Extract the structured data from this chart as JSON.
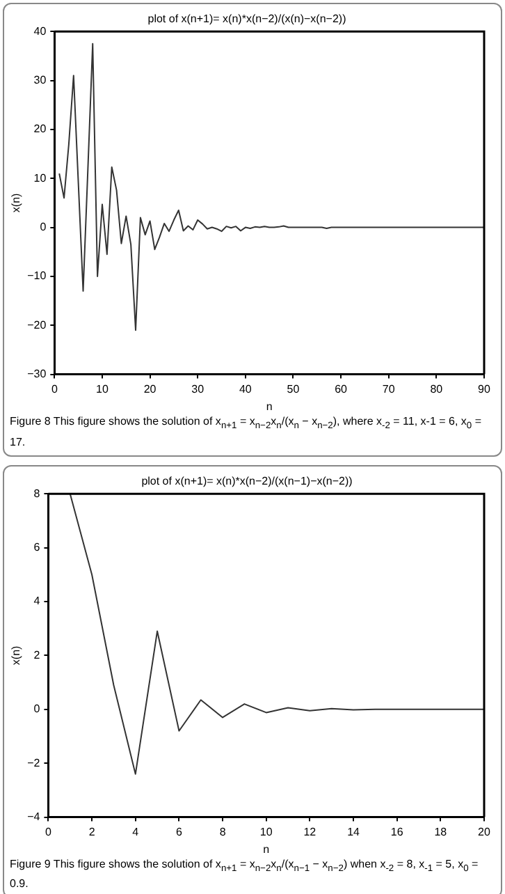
{
  "chart_data": [
    {
      "type": "line",
      "title": "plot of x(n+1)= x(n)*x(n−2)/(x(n)−x(n−2))",
      "xlabel": "n",
      "ylabel": "x(n)",
      "x": [
        1,
        2,
        3,
        4,
        5,
        6,
        7,
        8,
        9,
        10,
        11,
        12,
        13,
        14,
        15,
        16,
        17,
        18,
        19,
        20,
        21,
        22,
        23,
        24,
        25,
        26,
        27,
        28,
        29,
        30,
        31,
        32,
        33,
        34,
        35,
        36,
        37,
        38,
        39,
        40,
        41,
        42,
        43,
        44,
        45,
        46,
        47,
        48,
        49,
        50,
        51,
        52,
        53,
        54,
        55,
        56,
        57,
        58,
        59,
        60,
        61,
        62,
        63,
        64,
        65,
        66,
        67,
        68,
        69,
        70,
        71,
        72,
        73,
        74,
        75,
        76,
        77,
        78,
        79,
        80,
        81,
        82,
        83,
        84,
        85,
        86,
        87,
        88,
        89,
        90
      ],
      "values": [
        11,
        6,
        17,
        31,
        9,
        -13,
        12,
        37.5,
        -10,
        4.7,
        -5.5,
        12.3,
        7.6,
        -3.3,
        2.3,
        -3.5,
        -21,
        2,
        -1.5,
        1.3,
        -4.5,
        -2,
        0.8,
        -0.8,
        1.5,
        3.5,
        -0.7,
        0.3,
        -0.5,
        1.5,
        0.7,
        -0.3,
        0,
        -0.3,
        -0.8,
        0.2,
        -0.1,
        0.2,
        -0.7,
        0,
        -0.2,
        0.1,
        0,
        0.2,
        0,
        0,
        0.1,
        0.3,
        0,
        0,
        0,
        0,
        0,
        0,
        0,
        0,
        -0.2,
        0,
        0,
        0,
        0,
        0,
        0,
        0,
        0,
        0,
        0,
        0,
        0,
        0,
        0,
        0,
        0,
        0,
        0,
        0,
        0,
        0,
        0,
        0,
        0,
        0,
        0,
        0,
        0,
        0,
        0,
        0,
        0,
        0
      ],
      "color": "#333333",
      "xlim": [
        0,
        90
      ],
      "ylim": [
        -30,
        40
      ],
      "xticks": [
        0,
        10,
        20,
        30,
        40,
        50,
        60,
        70,
        80,
        90
      ],
      "yticks": [
        -30,
        -20,
        -10,
        0,
        10,
        20,
        30,
        40
      ],
      "grid": false,
      "legend": false,
      "annotations": [
        "Figure 8 This figure shows the solution of x$_{n+1}$ = x$_{n−2}$x$_{n}$/(x$_{n}$ − x$_{n−2}$), where x$_{-2}$ = 11, x-1 = 6, x$_{0}$ = 17."
      ]
    },
    {
      "type": "line",
      "title": "plot of x(n+1)= x(n)*x(n−2)/(x(n−1)−x(n−2))",
      "xlabel": "n",
      "ylabel": "x(n)",
      "x": [
        1,
        2,
        3,
        4,
        5,
        6,
        7,
        8,
        9,
        10,
        11,
        12,
        13,
        14,
        15,
        16,
        17,
        18,
        19,
        20
      ],
      "values": [
        8,
        5,
        0.9,
        -2.4,
        2.9,
        -0.8,
        0.35,
        -0.3,
        0.2,
        -0.12,
        0.06,
        -0.05,
        0.03,
        -0.02,
        0,
        0,
        0,
        0,
        0,
        0
      ],
      "color": "#333333",
      "xlim": [
        0,
        20
      ],
      "ylim": [
        -4,
        8
      ],
      "xticks": [
        0,
        2,
        4,
        6,
        8,
        10,
        12,
        14,
        16,
        18,
        20
      ],
      "yticks": [
        -4,
        -2,
        0,
        2,
        4,
        6,
        8
      ],
      "grid": false,
      "legend": false,
      "annotations": [
        "Figure 9 This figure shows the solution of x$_{n+1}$ = x$_{n−2}$x$_{n}$/(x$_{n−1}$ − x$_{n−2}$) when x$_{-2}$ = 8, x$_{-1}$ = 5, x$_{0}$ = 0.9."
      ]
    }
  ]
}
